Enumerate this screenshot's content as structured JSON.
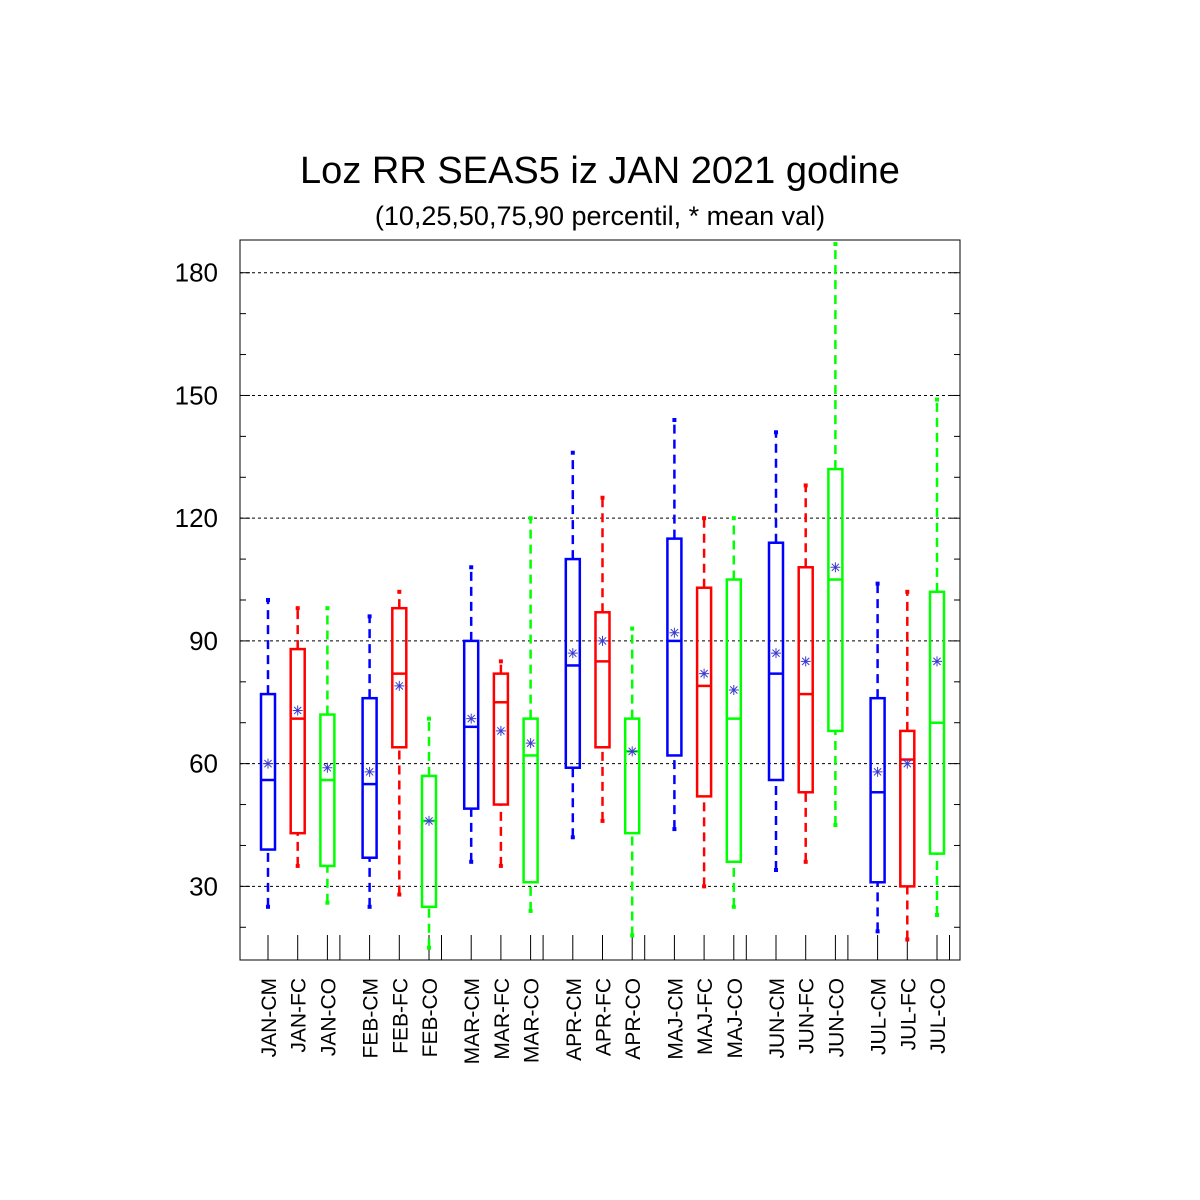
{
  "title": "Loz RR SEAS5 iz JAN 2021 godine",
  "subtitle": "(10,25,50,75,90 percentil, * mean val)",
  "chart_data": {
    "type": "box",
    "title": "Loz RR SEAS5 iz JAN 2021 godine",
    "subtitle": "(10,25,50,75,90 percentil, * mean val)",
    "xlabel": "",
    "ylabel": "",
    "ylim": [
      12,
      188
    ],
    "yticks": [
      30,
      60,
      90,
      120,
      150,
      180
    ],
    "grid": "horizontal dashed at major ticks",
    "group_colors": {
      "CM": "#0000ff",
      "FC": "#ff0000",
      "CO": "#00ff00"
    },
    "categories": [
      "JAN-CM",
      "JAN-FC",
      "JAN-CO",
      "FEB-CM",
      "FEB-FC",
      "FEB-CO",
      "MAR-CM",
      "MAR-FC",
      "MAR-CO",
      "APR-CM",
      "APR-FC",
      "APR-CO",
      "MAJ-CM",
      "MAJ-FC",
      "MAJ-CO",
      "JUN-CM",
      "JUN-FC",
      "JUN-CO",
      "JUL-CM",
      "JUL-FC",
      "JUL-CO"
    ],
    "boxes": [
      {
        "label": "JAN-CM",
        "p10": 25,
        "p25": 39,
        "p50": 56,
        "p75": 77,
        "p90": 100,
        "mean": 60
      },
      {
        "label": "JAN-FC",
        "p10": 35,
        "p25": 43,
        "p50": 71,
        "p75": 88,
        "p90": 98,
        "mean": 73
      },
      {
        "label": "JAN-CO",
        "p10": 26,
        "p25": 35,
        "p50": 56,
        "p75": 72,
        "p90": 98,
        "mean": 59
      },
      {
        "label": "FEB-CM",
        "p10": 25,
        "p25": 37,
        "p50": 55,
        "p75": 76,
        "p90": 96,
        "mean": 58
      },
      {
        "label": "FEB-FC",
        "p10": 28,
        "p25": 64,
        "p50": 82,
        "p75": 98,
        "p90": 102,
        "mean": 79
      },
      {
        "label": "FEB-CO",
        "p10": 15,
        "p25": 25,
        "p50": 46,
        "p75": 57,
        "p90": 71,
        "mean": 46
      },
      {
        "label": "MAR-CM",
        "p10": 36,
        "p25": 49,
        "p50": 69,
        "p75": 90,
        "p90": 108,
        "mean": 71
      },
      {
        "label": "MAR-FC",
        "p10": 35,
        "p25": 50,
        "p50": 75,
        "p75": 82,
        "p90": 85,
        "mean": 68
      },
      {
        "label": "MAR-CO",
        "p10": 24,
        "p25": 31,
        "p50": 62,
        "p75": 71,
        "p90": 120,
        "mean": 65
      },
      {
        "label": "APR-CM",
        "p10": 42,
        "p25": 59,
        "p50": 84,
        "p75": 110,
        "p90": 136,
        "mean": 87
      },
      {
        "label": "APR-FC",
        "p10": 46,
        "p25": 64,
        "p50": 85,
        "p75": 97,
        "p90": 125,
        "mean": 90
      },
      {
        "label": "APR-CO",
        "p10": 18,
        "p25": 43,
        "p50": 63,
        "p75": 71,
        "p90": 93,
        "mean": 63
      },
      {
        "label": "MAJ-CM",
        "p10": 44,
        "p25": 62,
        "p50": 90,
        "p75": 115,
        "p90": 144,
        "mean": 92
      },
      {
        "label": "MAJ-FC",
        "p10": 30,
        "p25": 52,
        "p50": 79,
        "p75": 103,
        "p90": 120,
        "mean": 82
      },
      {
        "label": "MAJ-CO",
        "p10": 25,
        "p25": 36,
        "p50": 71,
        "p75": 105,
        "p90": 120,
        "mean": 78
      },
      {
        "label": "JUN-CM",
        "p10": 34,
        "p25": 56,
        "p50": 82,
        "p75": 114,
        "p90": 141,
        "mean": 87
      },
      {
        "label": "JUN-FC",
        "p10": 36,
        "p25": 53,
        "p50": 77,
        "p75": 108,
        "p90": 128,
        "mean": 85
      },
      {
        "label": "JUN-CO",
        "p10": 45,
        "p25": 68,
        "p50": 105,
        "p75": 132,
        "p90": 187,
        "mean": 108
      },
      {
        "label": "JUL-CM",
        "p10": 19,
        "p25": 31,
        "p50": 53,
        "p75": 76,
        "p90": 104,
        "mean": 58
      },
      {
        "label": "JUL-FC",
        "p10": 17,
        "p25": 30,
        "p50": 61,
        "p75": 68,
        "p90": 102,
        "mean": 60
      },
      {
        "label": "JUL-CO",
        "p10": 23,
        "p25": 38,
        "p50": 70,
        "p75": 102,
        "p90": 149,
        "mean": 85
      }
    ]
  }
}
